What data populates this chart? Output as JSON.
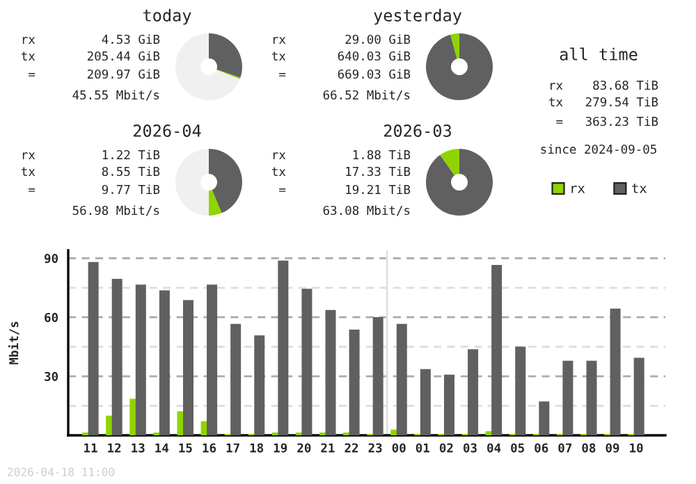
{
  "chart_data": [
    {
      "type": "donut",
      "title": "today",
      "categories": [
        null,
        null,
        null
      ],
      "values": [
        30.33,
        0.67,
        69
      ],
      "colors": [
        "#606060",
        "#8fd400",
        "#f0f0f0"
      ],
      "annotations": [
        "rx         4.53 GiB",
        "tx       205.44 GiB",
        " =       209.97 GiB",
        "45.55 Mbit/s"
      ]
    },
    {
      "type": "donut",
      "title": "yesterday",
      "categories": [
        null,
        null
      ],
      "values": [
        95.67,
        4.33
      ],
      "colors": [
        "#606060",
        "#8fd400"
      ],
      "annotations": [
        "rx        29.00 GiB",
        "tx       640.03 GiB",
        " =       669.03 GiB",
        "66.52 Mbit/s"
      ]
    },
    {
      "type": "donut",
      "title": "2026-04",
      "categories": [
        null,
        null,
        null
      ],
      "values": [
        43.75,
        6.25,
        50
      ],
      "colors": [
        "#606060",
        "#8fd400",
        "#f0f0f0"
      ],
      "annotations": [
        "rx         1.22 TiB",
        "tx         8.55 TiB",
        " =         9.77 TiB",
        "56.98 Mbit/s"
      ]
    },
    {
      "type": "donut",
      "title": "2026-03",
      "categories": [
        null,
        null
      ],
      "values": [
        90.21,
        9.79
      ],
      "colors": [
        "#606060",
        "#8fd400"
      ],
      "annotations": [
        "rx         1.88 TiB",
        "tx        17.33 TiB",
        " =        19.21 TiB",
        "63.08 Mbit/s"
      ]
    },
    {
      "type": "other",
      "title": "all time",
      "annotations": [
        "rx    83.68 TiB",
        "tx   279.54 TiB",
        " =   363.23 TiB",
        "since 2024-09-05"
      ]
    },
    {
      "type": "bar",
      "ylabel": "Mbit/s",
      "legend": "top right",
      "grid": "y",
      "categories": [
        "11",
        "12",
        "13",
        "14",
        "15",
        "16",
        "17",
        "18",
        "19",
        "20",
        "21",
        "22",
        "23",
        "00",
        "01",
        "02",
        "03",
        "04",
        "05",
        "06",
        "07",
        "08",
        "09",
        "10"
      ],
      "series": [
        {
          "name": "rx",
          "color": "#8fd400",
          "values": [
            1.4,
            10,
            18.6,
            1.4,
            12.2,
            7.2,
            0.7,
            0.7,
            1.4,
            1.4,
            1.4,
            1.4,
            0.7,
            2.9,
            0.7,
            0.7,
            0.7,
            2.1,
            0.7,
            0.7,
            0.7,
            0.7,
            0.7,
            0.7
          ]
        },
        {
          "name": "tx",
          "color": "#606060",
          "values": [
            88.1,
            79.5,
            76.6,
            73.7,
            68.7,
            76.6,
            56.6,
            50.8,
            88.8,
            74.5,
            63.7,
            53.7,
            60.1,
            56.6,
            33.7,
            30.8,
            43.7,
            86.6,
            45.1,
            17.2,
            37.9,
            37.9,
            64.4,
            39.4
          ]
        }
      ],
      "ylim": [
        0,
        94
      ],
      "yticks": [
        {
          "value": 0,
          "label": null
        },
        {
          "value": 15,
          "label": null
        },
        30,
        {
          "value": 45,
          "label": null
        },
        60,
        {
          "value": 75,
          "label": null
        },
        90
      ],
      "ref_lines": [
        {
          "axis": "x",
          "value": "00",
          "color": "#e0e0e0"
        }
      ],
      "annotations": [
        "2026-04-18 11:00"
      ]
    }
  ]
}
